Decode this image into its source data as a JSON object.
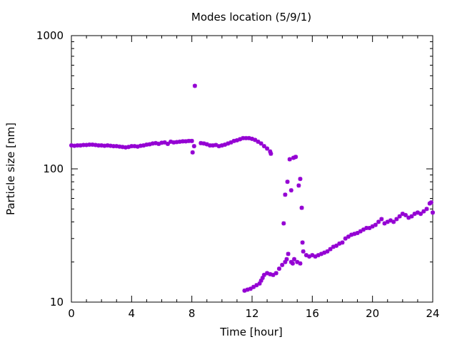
{
  "chart_data": {
    "type": "scatter",
    "title": "Modes location (5/9/1)",
    "xlabel": "Time [hour]",
    "ylabel": "Particle size [nm]",
    "xlim": [
      0,
      24
    ],
    "ylim": [
      10,
      1000
    ],
    "y_scale": "log",
    "x_ticks": [
      0,
      4,
      8,
      12,
      16,
      20,
      24
    ],
    "y_ticks": [
      10,
      100,
      1000
    ],
    "grid": false,
    "legend": "none",
    "marker_color": "#9400d3",
    "series": [
      {
        "values": [
          [
            0.0,
            150
          ],
          [
            0.2,
            149
          ],
          [
            0.4,
            150
          ],
          [
            0.6,
            150
          ],
          [
            0.8,
            151
          ],
          [
            1.0,
            151
          ],
          [
            1.2,
            152
          ],
          [
            1.4,
            152
          ],
          [
            1.6,
            151
          ],
          [
            1.8,
            150
          ],
          [
            2.0,
            150
          ],
          [
            2.2,
            149
          ],
          [
            2.4,
            150
          ],
          [
            2.6,
            149
          ],
          [
            2.8,
            148
          ],
          [
            3.0,
            148
          ],
          [
            3.2,
            147
          ],
          [
            3.4,
            146
          ],
          [
            3.6,
            145
          ],
          [
            3.8,
            146
          ],
          [
            4.0,
            148
          ],
          [
            4.2,
            148
          ],
          [
            4.4,
            147
          ],
          [
            4.6,
            149
          ],
          [
            4.8,
            150
          ],
          [
            5.0,
            152
          ],
          [
            5.2,
            153
          ],
          [
            5.4,
            155
          ],
          [
            5.6,
            156
          ],
          [
            5.8,
            154
          ],
          [
            6.0,
            157
          ],
          [
            6.2,
            158
          ],
          [
            6.4,
            154
          ],
          [
            6.6,
            160
          ],
          [
            6.8,
            158
          ],
          [
            7.0,
            159
          ],
          [
            7.2,
            160
          ],
          [
            7.4,
            161
          ],
          [
            7.6,
            161
          ],
          [
            7.8,
            162
          ],
          [
            8.0,
            162
          ],
          [
            8.05,
            133
          ],
          [
            8.15,
            148
          ],
          [
            8.2,
            420
          ],
          [
            8.6,
            156
          ],
          [
            8.8,
            155
          ],
          [
            9.0,
            153
          ],
          [
            9.2,
            150
          ],
          [
            9.4,
            150
          ],
          [
            9.6,
            151
          ],
          [
            9.8,
            148
          ],
          [
            10.0,
            150
          ],
          [
            10.2,
            152
          ],
          [
            10.4,
            155
          ],
          [
            10.6,
            158
          ],
          [
            10.8,
            162
          ],
          [
            11.0,
            164
          ],
          [
            11.2,
            167
          ],
          [
            11.4,
            170
          ],
          [
            11.6,
            170
          ],
          [
            11.8,
            170
          ],
          [
            12.0,
            168
          ],
          [
            12.2,
            165
          ],
          [
            12.4,
            160
          ],
          [
            12.6,
            155
          ],
          [
            12.8,
            148
          ],
          [
            13.0,
            142
          ],
          [
            13.2,
            135
          ],
          [
            13.25,
            130
          ],
          [
            14.1,
            39
          ],
          [
            14.2,
            64
          ],
          [
            14.35,
            80
          ],
          [
            14.5,
            118
          ],
          [
            14.6,
            69
          ],
          [
            14.75,
            121
          ],
          [
            14.9,
            123
          ],
          [
            15.1,
            75
          ],
          [
            15.2,
            84
          ],
          [
            15.3,
            51
          ],
          [
            15.35,
            28
          ],
          [
            11.5,
            12.2
          ],
          [
            11.7,
            12.4
          ],
          [
            11.9,
            12.6
          ],
          [
            12.1,
            13.0
          ],
          [
            12.3,
            13.4
          ],
          [
            12.5,
            13.8
          ],
          [
            12.6,
            14.5
          ],
          [
            12.7,
            15.2
          ],
          [
            12.8,
            16.0
          ],
          [
            13.0,
            16.5
          ],
          [
            13.2,
            16.2
          ],
          [
            13.4,
            16.0
          ],
          [
            13.6,
            16.5
          ],
          [
            13.8,
            17.8
          ],
          [
            14.0,
            19.0
          ],
          [
            14.2,
            20.0
          ],
          [
            14.3,
            21.0
          ],
          [
            14.4,
            23.0
          ],
          [
            14.6,
            20.0
          ],
          [
            14.7,
            19.5
          ],
          [
            14.8,
            21.0
          ],
          [
            15.0,
            20.0
          ],
          [
            15.2,
            19.5
          ],
          [
            15.4,
            24.0
          ],
          [
            15.6,
            22.5
          ],
          [
            15.8,
            22.0
          ],
          [
            16.0,
            22.5
          ],
          [
            16.2,
            22.0
          ],
          [
            16.4,
            22.5
          ],
          [
            16.6,
            23.0
          ],
          [
            16.8,
            23.5
          ],
          [
            17.0,
            24.0
          ],
          [
            17.2,
            25.0
          ],
          [
            17.4,
            26.0
          ],
          [
            17.6,
            26.5
          ],
          [
            17.8,
            27.5
          ],
          [
            18.0,
            28.0
          ],
          [
            18.2,
            30.0
          ],
          [
            18.4,
            31.0
          ],
          [
            18.6,
            32.0
          ],
          [
            18.8,
            32.5
          ],
          [
            19.0,
            33.0
          ],
          [
            19.2,
            34.0
          ],
          [
            19.4,
            35.0
          ],
          [
            19.6,
            36.0
          ],
          [
            19.8,
            36.0
          ],
          [
            20.0,
            37.0
          ],
          [
            20.2,
            38.0
          ],
          [
            20.4,
            40.0
          ],
          [
            20.6,
            42.0
          ],
          [
            20.8,
            39.0
          ],
          [
            21.0,
            40.0
          ],
          [
            21.2,
            41.0
          ],
          [
            21.4,
            40.0
          ],
          [
            21.6,
            42.0
          ],
          [
            21.8,
            44.0
          ],
          [
            22.0,
            46.0
          ],
          [
            22.2,
            45.0
          ],
          [
            22.4,
            43.0
          ],
          [
            22.6,
            44.0
          ],
          [
            22.8,
            46.0
          ],
          [
            23.0,
            47.0
          ],
          [
            23.2,
            46.0
          ],
          [
            23.4,
            48.0
          ],
          [
            23.6,
            50.0
          ],
          [
            23.8,
            55.0
          ],
          [
            23.9,
            56.0
          ],
          [
            24.0,
            47.0
          ]
        ]
      }
    ]
  }
}
